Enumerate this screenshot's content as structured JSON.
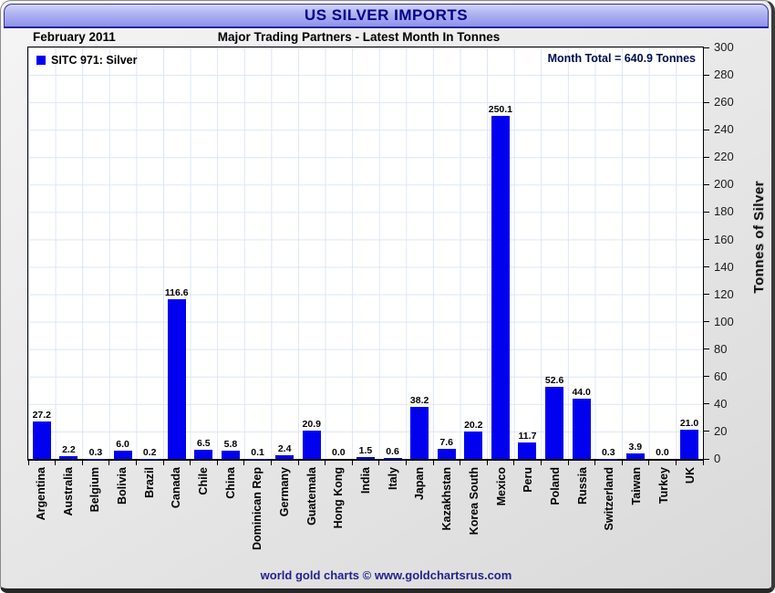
{
  "window": {
    "title": "US SILVER IMPORTS"
  },
  "header": {
    "date_label": "February 2011",
    "subtitle": "Major Trading Partners - Latest Month In Tonnes",
    "month_total": "Month Total = 640.9 Tonnes"
  },
  "legend": {
    "label": "SITC 971: Silver"
  },
  "footer": {
    "credit": "world gold charts © www.goldchartsrus.com"
  },
  "colors": {
    "bar_blue": "#0101f0",
    "title_navy": "#00008b",
    "grid_blue": "#dbe6f5"
  },
  "chart_data": {
    "type": "bar",
    "title": "US SILVER IMPORTS",
    "subtitle": "Major Trading Partners - Latest Month In Tonnes",
    "period": "February 2011",
    "series_name": "SITC 971: Silver",
    "month_total_tonnes": 640.9,
    "categories": [
      "Argentina",
      "Australia",
      "Belgium",
      "Bolivia",
      "Brazil",
      "Canada",
      "Chile",
      "China",
      "Dominican Rep",
      "Germany",
      "Guatemala",
      "Hong Kong",
      "India",
      "Italy",
      "Japan",
      "Kazakhstan",
      "Korea South",
      "Mexico",
      "Peru",
      "Poland",
      "Russia",
      "Switzerland",
      "Taiwan",
      "Turkey",
      "UK"
    ],
    "values": [
      27.2,
      2.2,
      0.3,
      6.0,
      0.2,
      116.6,
      6.5,
      5.8,
      0.1,
      2.4,
      20.9,
      0.0,
      1.5,
      0.6,
      38.2,
      7.6,
      20.2,
      250.1,
      11.7,
      52.6,
      44.0,
      0.3,
      3.9,
      0.0,
      21.0
    ],
    "xlabel": "",
    "ylabel": "Tonnes of Silver",
    "ylim": [
      0,
      300
    ],
    "ytick_step": 20,
    "yaxis_side": "right",
    "grid": true,
    "value_labels": true,
    "legend_position": "top-left",
    "bar_color": "#0101f0"
  }
}
